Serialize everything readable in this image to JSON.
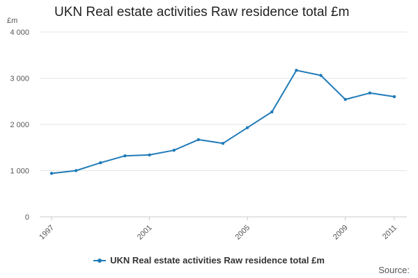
{
  "chart_data": {
    "type": "line",
    "title": "UKN Real estate activities Raw residence total £m",
    "ylabel": "£m",
    "xlabel": "",
    "x": [
      "1997",
      "1998",
      "1999",
      "2000",
      "2001",
      "2002",
      "2003",
      "2004",
      "2005",
      "2006",
      "2007",
      "2008",
      "2009",
      "2010",
      "2011"
    ],
    "x_tick_labels": [
      "1997",
      "2001",
      "2005",
      "2009",
      "2011"
    ],
    "y_tick_labels": [
      "0",
      "1 000",
      "2 000",
      "3 000",
      "4 000"
    ],
    "ylim": [
      0,
      4000
    ],
    "grid": true,
    "legend_position": "bottom",
    "series": [
      {
        "name": "UKN Real estate activities Raw residence total £m",
        "color": "#1f7ab8",
        "values": [
          940,
          1000,
          1170,
          1320,
          1340,
          1440,
          1670,
          1590,
          1930,
          2270,
          3170,
          3060,
          2540,
          2680,
          2600
        ]
      }
    ]
  },
  "footer": {
    "source_label": "Source:"
  }
}
